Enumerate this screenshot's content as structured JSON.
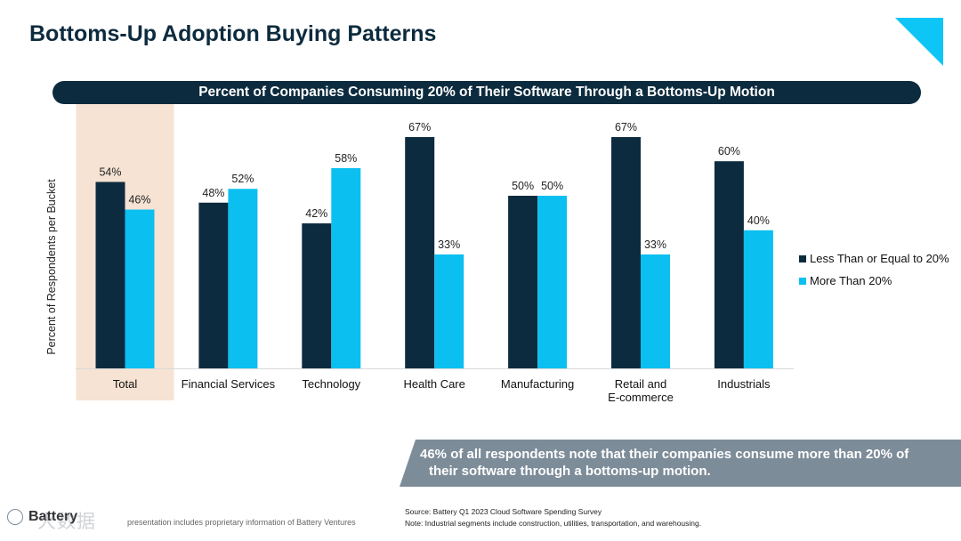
{
  "slide": {
    "title": "Bottoms-Up Adoption Buying Patterns",
    "banner": "Percent of Companies Consuming 20% of Their Software Through a Bottoms-Up Motion",
    "callout_line1": "46% of all respondents note that their companies consume more than 20% of",
    "callout_line2": "their software through a bottoms-up motion.",
    "source": "Source: Battery Q1 2023 Cloud Software Spending Survey",
    "note": "Note: Industrial segments include construction, utilities, transportation, and warehousing.",
    "logo": "Battery",
    "footer_note": "presentation includes proprietary information of Battery Ventures",
    "watermark": "大数据"
  },
  "colors": {
    "dark": "#0d2b3e",
    "light": "#0bc0f0",
    "highlight": "#f6e3d3",
    "accent": "#0ec6f5"
  },
  "legend": {
    "series1": "Less Than or Equal to 20%",
    "series2": "More Than 20%"
  },
  "chart_data": {
    "type": "bar",
    "title": "Percent of Companies Consuming 20% of Their Software Through a Bottoms-Up Motion",
    "xlabel": "",
    "ylabel": "Percent of Respondents per Bucket",
    "ylim": [
      0,
      100
    ],
    "grid": false,
    "legend": "right",
    "highlighted_category": "Total",
    "categories": [
      "Total",
      "Financial Services",
      "Technology",
      "Health Care",
      "Manufacturing",
      "Retail and E-commerce",
      "Industrials"
    ],
    "category_lines": [
      [
        "Total"
      ],
      [
        "Financial Services"
      ],
      [
        "Technology"
      ],
      [
        "Health Care"
      ],
      [
        "Manufacturing"
      ],
      [
        "Retail and",
        "E-commerce"
      ],
      [
        "Industrials"
      ]
    ],
    "series": [
      {
        "name": "Less Than or Equal to 20%",
        "values": [
          54,
          48,
          42,
          67,
          50,
          67,
          60
        ],
        "labels": [
          "54%",
          "48%",
          "42%",
          "67%",
          "50%",
          "67%",
          "60%"
        ]
      },
      {
        "name": "More Than 20%",
        "values": [
          46,
          52,
          58,
          33,
          50,
          33,
          40
        ],
        "labels": [
          "46%",
          "52%",
          "58%",
          "33%",
          "50%",
          "33%",
          "40%"
        ]
      }
    ]
  }
}
